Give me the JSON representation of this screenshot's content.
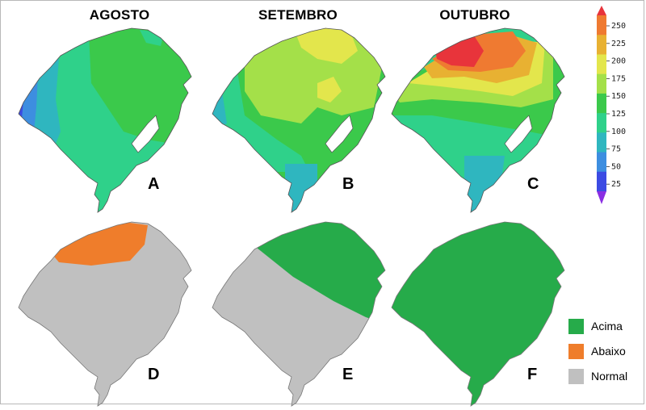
{
  "months": [
    "AGOSTO",
    "SETEMBRO",
    "OUTUBRO"
  ],
  "panel_letters": [
    "A",
    "B",
    "C",
    "D",
    "E",
    "F"
  ],
  "colorbar": {
    "ticks": [
      "250",
      "225",
      "200",
      "175",
      "150",
      "125",
      "100",
      "75",
      "50",
      "25"
    ],
    "colors": [
      "#e8343b",
      "#ef7a31",
      "#e8b132",
      "#e3e64c",
      "#a4e049",
      "#3bc94b",
      "#2fd18a",
      "#2fb6bf",
      "#3d8ee0",
      "#3c4be3",
      "#8a2ee3"
    ]
  },
  "legend": {
    "items": [
      {
        "label": "Acima",
        "color": "#26ab4a"
      },
      {
        "label": "Abaixo",
        "color": "#ef7d2b"
      },
      {
        "label": "Normal",
        "color": "#c0c0c0"
      }
    ]
  }
}
